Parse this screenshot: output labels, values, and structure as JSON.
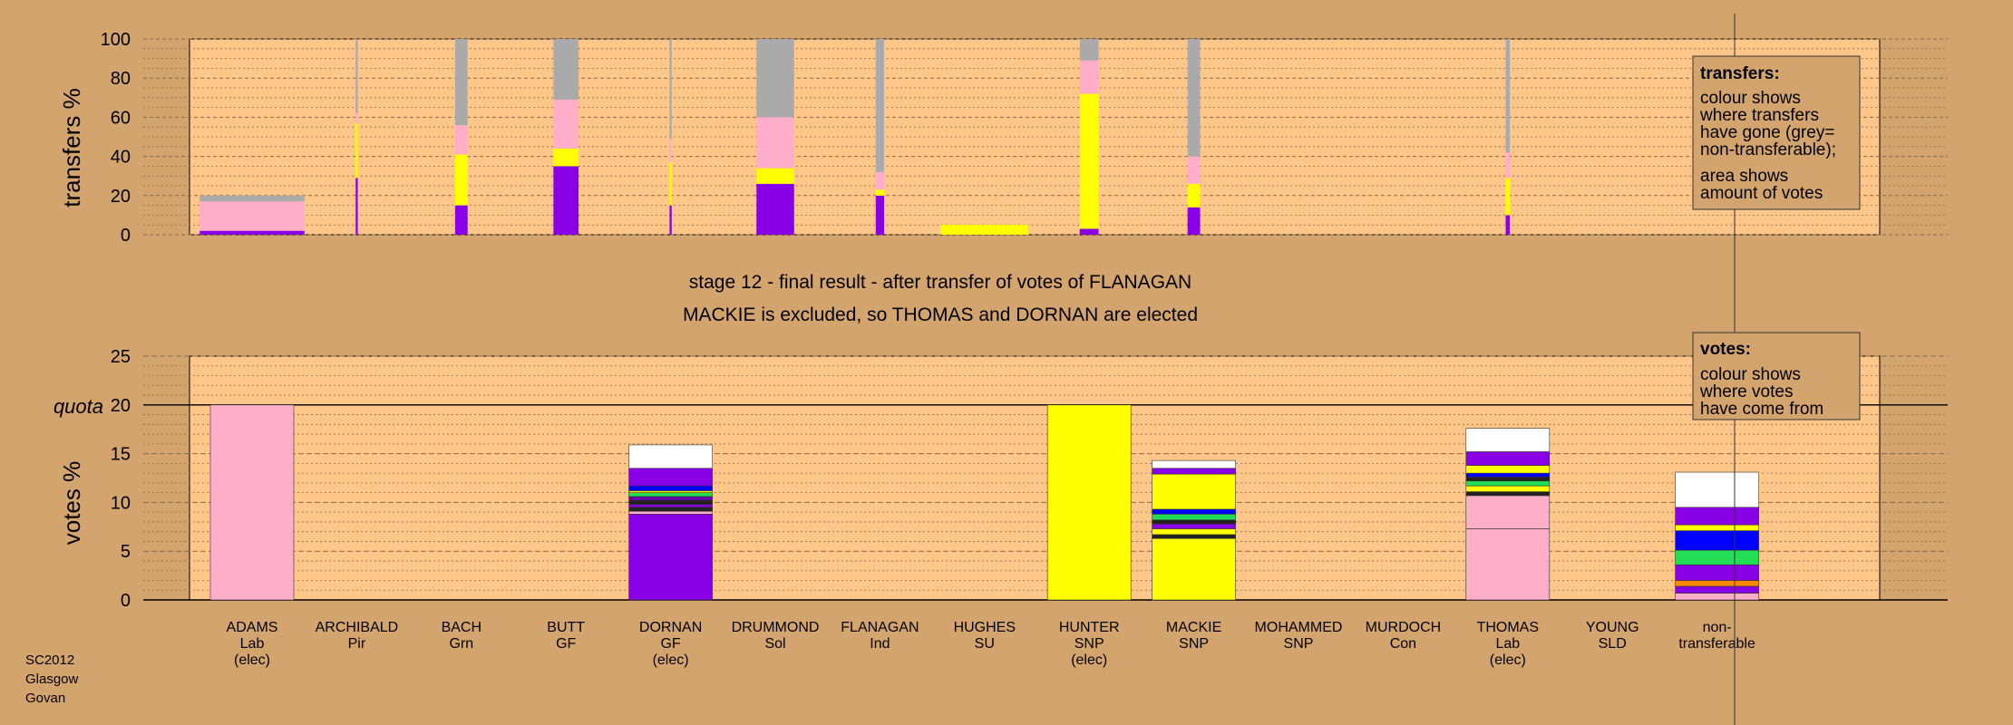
{
  "colors": {
    "page_bg": "#d4a46e",
    "plot_bg": "#ffc68a",
    "lab": "#ffaec9",
    "snp": "#ffff00",
    "gf": "#8a00e6",
    "non_transferable": "#aaaaaa",
    "grn": "#00e64d",
    "sld": "#ff9900",
    "con": "#0033ff",
    "white": "#ffffff",
    "dark": "#222222",
    "green": "#22dd55",
    "orange": "#ff8800",
    "blue": "#0000ff",
    "purple2": "#6600aa"
  },
  "texts": {
    "title_line1": "stage 12 - final result - after transfer of votes of FLANAGAN",
    "title_line2": "MACKIE is excluded, so THOMAS and DORNAN are elected",
    "quota_label": "quota",
    "footer": [
      "SC2012",
      "Glasgow",
      "Govan"
    ]
  },
  "legend": {
    "transfers": {
      "heading": "transfers:",
      "lines": [
        "colour shows",
        "where transfers",
        "have gone (grey=",
        "non-transferable);",
        "area shows",
        "amount of votes"
      ]
    },
    "votes": {
      "heading": "votes:",
      "lines": [
        "colour shows",
        "where votes",
        "have come from"
      ]
    }
  },
  "chart_data": [
    {
      "type": "bar",
      "stacked": true,
      "ylabel": "transfers %",
      "ylim": [
        0,
        100
      ],
      "yticks": [
        0,
        20,
        40,
        60,
        80,
        100
      ],
      "grid": true,
      "bars": [
        {
          "center": 1,
          "halfwidth": 0.5,
          "segments": [
            {
              "v": 2,
              "c": "gf"
            },
            {
              "v": 15,
              "c": "lab"
            },
            {
              "v": 3,
              "c": "non_transferable"
            }
          ]
        },
        {
          "center": 2,
          "halfwidth": 0.01,
          "segments": [
            {
              "v": 29,
              "c": "gf"
            },
            {
              "v": 28,
              "c": "snp"
            },
            {
              "v": 5,
              "c": "lab"
            },
            {
              "v": 38,
              "c": "non_transferable"
            }
          ]
        },
        {
          "center": 3,
          "halfwidth": 0.06,
          "segments": [
            {
              "v": 15,
              "c": "gf"
            },
            {
              "v": 26,
              "c": "snp"
            },
            {
              "v": 15,
              "c": "lab"
            },
            {
              "v": 44,
              "c": "non_transferable"
            }
          ]
        },
        {
          "center": 4,
          "halfwidth": 0.12,
          "segments": [
            {
              "v": 35,
              "c": "gf"
            },
            {
              "v": 9,
              "c": "snp"
            },
            {
              "v": 25,
              "c": "lab"
            },
            {
              "v": 31,
              "c": "non_transferable"
            }
          ]
        },
        {
          "center": 5,
          "halfwidth": 0.01,
          "segments": [
            {
              "v": 15,
              "c": "gf"
            },
            {
              "v": 22,
              "c": "snp"
            },
            {
              "v": 12,
              "c": "lab"
            },
            {
              "v": 51,
              "c": "non_transferable"
            }
          ]
        },
        {
          "center": 6,
          "halfwidth": 0.18,
          "segments": [
            {
              "v": 26,
              "c": "gf"
            },
            {
              "v": 8,
              "c": "snp"
            },
            {
              "v": 26,
              "c": "lab"
            },
            {
              "v": 40,
              "c": "non_transferable"
            }
          ]
        },
        {
          "center": 7,
          "halfwidth": 0.04,
          "segments": [
            {
              "v": 20,
              "c": "gf"
            },
            {
              "v": 3,
              "c": "snp"
            },
            {
              "v": 9,
              "c": "lab"
            },
            {
              "v": 68,
              "c": "non_transferable"
            }
          ]
        },
        {
          "center": 8,
          "halfwidth": 0.42,
          "segments": [
            {
              "v": 5,
              "c": "snp"
            }
          ]
        },
        {
          "center": 9,
          "halfwidth": 0.09,
          "segments": [
            {
              "v": 3,
              "c": "gf"
            },
            {
              "v": 69,
              "c": "snp"
            },
            {
              "v": 17,
              "c": "lab"
            },
            {
              "v": 11,
              "c": "non_transferable"
            }
          ]
        },
        {
          "center": 10,
          "halfwidth": 0.06,
          "segments": [
            {
              "v": 14,
              "c": "gf"
            },
            {
              "v": 12,
              "c": "snp"
            },
            {
              "v": 14,
              "c": "lab"
            },
            {
              "v": 60,
              "c": "non_transferable"
            }
          ]
        },
        {
          "center": 13,
          "halfwidth": 0.02,
          "segments": [
            {
              "v": 10,
              "c": "gf"
            },
            {
              "v": 19,
              "c": "snp"
            },
            {
              "v": 13,
              "c": "lab"
            },
            {
              "v": 58,
              "c": "non_transferable"
            }
          ]
        }
      ]
    },
    {
      "type": "bar",
      "stacked": true,
      "ylabel": "votes %",
      "ylim": [
        0,
        25
      ],
      "yticks": [
        0,
        5,
        10,
        15,
        20,
        25
      ],
      "quota": 20,
      "grid": true,
      "categories": [
        {
          "name": "ADAMS",
          "party": "Lab",
          "status": "(elec)"
        },
        {
          "name": "ARCHIBALD",
          "party": "Pir",
          "status": ""
        },
        {
          "name": "BACH",
          "party": "Grn",
          "status": ""
        },
        {
          "name": "BUTT",
          "party": "GF",
          "status": ""
        },
        {
          "name": "DORNAN",
          "party": "GF",
          "status": "(elec)"
        },
        {
          "name": "DRUMMOND",
          "party": "Sol",
          "status": ""
        },
        {
          "name": "FLANAGAN",
          "party": "Ind",
          "status": ""
        },
        {
          "name": "HUGHES",
          "party": "SU",
          "status": ""
        },
        {
          "name": "HUNTER",
          "party": "SNP",
          "status": "(elec)"
        },
        {
          "name": "MACKIE",
          "party": "SNP",
          "status": ""
        },
        {
          "name": "MOHAMMED",
          "party": "SNP",
          "status": ""
        },
        {
          "name": "MURDOCH",
          "party": "Con",
          "status": ""
        },
        {
          "name": "THOMAS",
          "party": "Lab",
          "status": "(elec)"
        },
        {
          "name": "YOUNG",
          "party": "SLD",
          "status": ""
        },
        {
          "name": "non-",
          "party": "transferable",
          "status": ""
        }
      ],
      "bars": [
        {
          "index": 0,
          "segments": [
            {
              "v": 20,
              "c": "lab"
            }
          ]
        },
        {
          "index": 4,
          "segments": [
            {
              "v": 8.8,
              "c": "gf"
            },
            {
              "v": 0.3,
              "c": "lab"
            },
            {
              "v": 0.4,
              "c": "dark"
            },
            {
              "v": 0.3,
              "c": "gf"
            },
            {
              "v": 0.4,
              "c": "dark"
            },
            {
              "v": 0.4,
              "c": "purple2"
            },
            {
              "v": 0.4,
              "c": "green"
            },
            {
              "v": 0.2,
              "c": "snp"
            },
            {
              "v": 0.5,
              "c": "blue"
            },
            {
              "v": 1.8,
              "c": "gf"
            },
            {
              "v": 2.4,
              "c": "white"
            }
          ]
        },
        {
          "index": 8,
          "segments": [
            {
              "v": 20,
              "c": "snp"
            }
          ]
        },
        {
          "index": 9,
          "segments": [
            {
              "v": 6.3,
              "c": "snp"
            },
            {
              "v": 0.4,
              "c": "dark"
            },
            {
              "v": 0.6,
              "c": "snp"
            },
            {
              "v": 0.5,
              "c": "gf"
            },
            {
              "v": 0.4,
              "c": "dark"
            },
            {
              "v": 0.6,
              "c": "green"
            },
            {
              "v": 0.5,
              "c": "blue"
            },
            {
              "v": 3.6,
              "c": "snp"
            },
            {
              "v": 0.6,
              "c": "gf"
            },
            {
              "v": 0.8,
              "c": "white"
            }
          ]
        },
        {
          "index": 12,
          "segments": [
            {
              "v": 7.3,
              "c": "lab"
            },
            {
              "v": 3.4,
              "c": "lab"
            },
            {
              "v": 0.4,
              "c": "dark"
            },
            {
              "v": 0.6,
              "c": "snp"
            },
            {
              "v": 0.5,
              "c": "green"
            },
            {
              "v": 0.4,
              "c": "dark"
            },
            {
              "v": 0.4,
              "c": "blue"
            },
            {
              "v": 0.8,
              "c": "snp"
            },
            {
              "v": 1.4,
              "c": "gf"
            },
            {
              "v": 2.4,
              "c": "white"
            }
          ]
        },
        {
          "index": 14,
          "segments": [
            {
              "v": 0.7,
              "c": "lab"
            },
            {
              "v": 0.7,
              "c": "gf"
            },
            {
              "v": 0.6,
              "c": "orange"
            },
            {
              "v": 1.6,
              "c": "gf"
            },
            {
              "v": 1.5,
              "c": "green"
            },
            {
              "v": 2.0,
              "c": "blue"
            },
            {
              "v": 0.6,
              "c": "snp"
            },
            {
              "v": 1.8,
              "c": "gf"
            },
            {
              "v": 3.6,
              "c": "white"
            }
          ]
        }
      ]
    }
  ]
}
